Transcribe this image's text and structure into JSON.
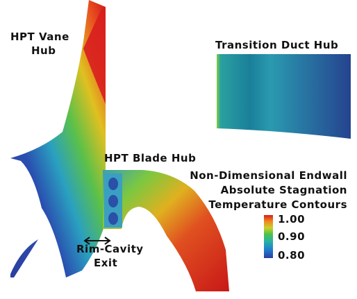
{
  "labels": {
    "vane": [
      "HPT Vane",
      "Hub"
    ],
    "duct": "Transition Duct Hub",
    "blade": "HPT Blade Hub",
    "rim": [
      "Rim-Cavity",
      "Exit"
    ]
  },
  "colorbar": {
    "title": [
      "Non-Dimensional Endwall",
      "Absolute Stagnation",
      "Temperature Contours"
    ],
    "ticks": [
      "1.00",
      "0.90",
      "0.80"
    ]
  }
}
